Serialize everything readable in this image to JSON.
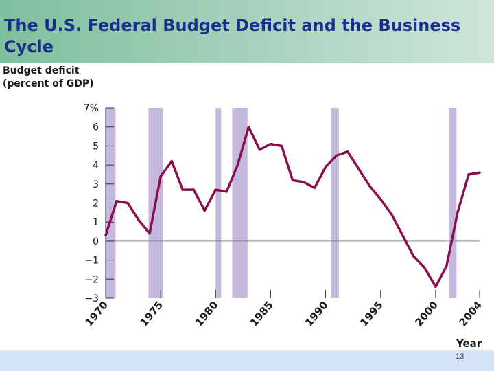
{
  "slide": {
    "title": "The U.S. Federal Budget Deficit and the Business Cycle",
    "page_number": "13"
  },
  "colors": {
    "line": "#8b0f4e",
    "recession": "#c4b8dc",
    "axis": "#333333",
    "header_text": "#1a2f8c"
  },
  "chart_data": {
    "type": "line",
    "ylabel_lines": [
      "Budget deficit",
      "(percent of GDP)"
    ],
    "xlabel": "Year",
    "xlim": [
      1970,
      2004
    ],
    "ylim": [
      -3,
      7
    ],
    "y_ticks": [
      {
        "value": 7,
        "label": "7%"
      },
      {
        "value": 6,
        "label": "6"
      },
      {
        "value": 5,
        "label": "5"
      },
      {
        "value": 4,
        "label": "4"
      },
      {
        "value": 3,
        "label": "3"
      },
      {
        "value": 2,
        "label": "2"
      },
      {
        "value": 1,
        "label": "1"
      },
      {
        "value": 0,
        "label": "0"
      },
      {
        "value": -1,
        "label": "−1"
      },
      {
        "value": -2,
        "label": "−2"
      },
      {
        "value": -3,
        "label": "−3"
      }
    ],
    "x_ticks": [
      {
        "value": 1970,
        "label": "1970"
      },
      {
        "value": 1975,
        "label": "1975"
      },
      {
        "value": 1980,
        "label": "1980"
      },
      {
        "value": 1985,
        "label": "1985"
      },
      {
        "value": 1990,
        "label": "1990"
      },
      {
        "value": 1995,
        "label": "1995"
      },
      {
        "value": 2000,
        "label": "2000"
      },
      {
        "value": 2004,
        "label": "2004"
      }
    ],
    "recessions": [
      [
        1970.0,
        1970.9
      ],
      [
        1973.9,
        1975.2
      ],
      [
        1980.0,
        1980.5
      ],
      [
        1981.5,
        1982.9
      ],
      [
        1990.5,
        1991.2
      ],
      [
        2001.2,
        2001.9
      ]
    ],
    "x": [
      1970,
      1971,
      1972,
      1973,
      1974,
      1975,
      1976,
      1977,
      1978,
      1979,
      1980,
      1981,
      1982,
      1983,
      1984,
      1985,
      1986,
      1987,
      1988,
      1989,
      1990,
      1991,
      1992,
      1993,
      1994,
      1995,
      1996,
      1997,
      1998,
      1999,
      2000,
      2001,
      2002,
      2003,
      2004
    ],
    "y": [
      0.3,
      2.1,
      2.0,
      1.1,
      0.4,
      3.4,
      4.2,
      2.7,
      2.7,
      1.6,
      2.7,
      2.6,
      4.0,
      6.0,
      4.8,
      5.1,
      5.0,
      3.2,
      3.1,
      2.8,
      3.9,
      4.5,
      4.7,
      3.8,
      2.9,
      2.2,
      1.4,
      0.3,
      -0.8,
      -1.4,
      -2.4,
      -1.3,
      1.5,
      3.5,
      3.6
    ]
  }
}
